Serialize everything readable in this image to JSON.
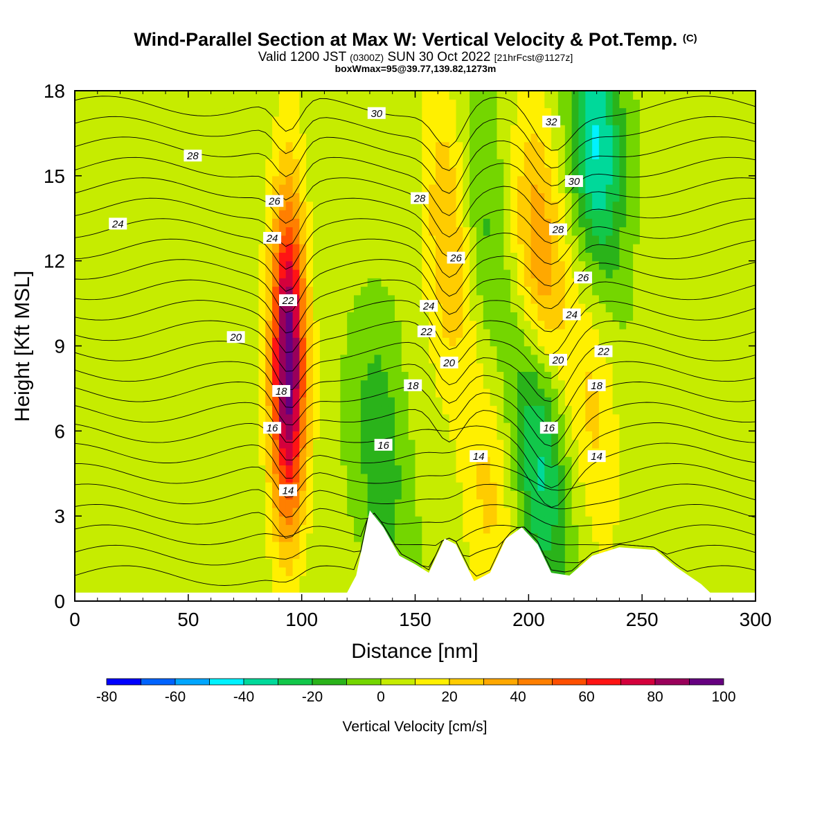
{
  "title": "Wind-Parallel Section at Max W: Vertical Velocity & Pot.Temp.",
  "title_mark": "(C)",
  "subtitle_main": "Valid 1200 JST",
  "subtitle_utc": "(0300Z)",
  "subtitle_date": "SUN 30 Oct 2022",
  "subtitle_fcst": "[21hrFcst@1127z]",
  "subtitle2": "boxWmax=95@39.77,139.82,1273m",
  "chart_data": {
    "type": "heatmap",
    "xlabel": "Distance [nm]",
    "ylabel": "Height [Kft MSL]",
    "xlim": [
      0,
      300
    ],
    "ylim": [
      0,
      18
    ],
    "xticks": [
      0,
      50,
      100,
      150,
      200,
      250,
      300
    ],
    "yticks": [
      0,
      3,
      6,
      9,
      12,
      15,
      18
    ],
    "colorbar": {
      "title": "Vertical Velocity [cm/s]",
      "levels": [
        -80,
        -70,
        -60,
        -50,
        -40,
        -30,
        -20,
        -10,
        0,
        10,
        20,
        30,
        40,
        50,
        60,
        70,
        80,
        90,
        100
      ],
      "tick_labels": [
        "-80",
        "-60",
        "-40",
        "-20",
        "0",
        "20",
        "40",
        "60",
        "80",
        "100"
      ],
      "tick_values": [
        -80,
        -60,
        -40,
        -20,
        0,
        20,
        40,
        60,
        80,
        100
      ],
      "colors": [
        "#0000ff",
        "#0063ff",
        "#00a6ff",
        "#00f2ff",
        "#00d99a",
        "#12c74a",
        "#2ab31a",
        "#74d600",
        "#c6ec00",
        "#fff000",
        "#ffcc00",
        "#ffa800",
        "#ff7f00",
        "#ff4f00",
        "#ff1414",
        "#d4003c",
        "#99005a",
        "#660080"
      ]
    },
    "contour_labels": [
      {
        "text": "30",
        "x": 133,
        "y": 17.2
      },
      {
        "text": "28",
        "x": 52,
        "y": 15.7
      },
      {
        "text": "26",
        "x": 88,
        "y": 14.1
      },
      {
        "text": "24",
        "x": 19,
        "y": 13.3
      },
      {
        "text": "24",
        "x": 87,
        "y": 12.8
      },
      {
        "text": "22",
        "x": 94,
        "y": 10.6
      },
      {
        "text": "20",
        "x": 71,
        "y": 9.3
      },
      {
        "text": "18",
        "x": 91,
        "y": 7.4
      },
      {
        "text": "16",
        "x": 87,
        "y": 6.1
      },
      {
        "text": "14",
        "x": 94,
        "y": 3.9
      },
      {
        "text": "28",
        "x": 152,
        "y": 14.2
      },
      {
        "text": "26",
        "x": 168,
        "y": 12.1
      },
      {
        "text": "24",
        "x": 156,
        "y": 10.4
      },
      {
        "text": "22",
        "x": 155,
        "y": 9.5
      },
      {
        "text": "20",
        "x": 165,
        "y": 8.4
      },
      {
        "text": "18",
        "x": 149,
        "y": 7.6
      },
      {
        "text": "16",
        "x": 136,
        "y": 5.5
      },
      {
        "text": "14",
        "x": 178,
        "y": 5.1
      },
      {
        "text": "32",
        "x": 210,
        "y": 16.9
      },
      {
        "text": "30",
        "x": 220,
        "y": 14.8
      },
      {
        "text": "28",
        "x": 213,
        "y": 13.1
      },
      {
        "text": "26",
        "x": 224,
        "y": 11.4
      },
      {
        "text": "24",
        "x": 219,
        "y": 10.1
      },
      {
        "text": "20",
        "x": 213,
        "y": 8.5
      },
      {
        "text": "22",
        "x": 233,
        "y": 8.8
      },
      {
        "text": "18",
        "x": 230,
        "y": 7.6
      },
      {
        "text": "16",
        "x": 209,
        "y": 6.1
      },
      {
        "text": "14",
        "x": 230,
        "y": 5.1
      }
    ],
    "velocity_features": [
      {
        "x": 94,
        "y": 8.5,
        "w": 95,
        "kind": "updraft-core"
      },
      {
        "x": 165,
        "y": 13.0,
        "w": 30,
        "kind": "updraft"
      },
      {
        "x": 205,
        "y": 12.0,
        "w": 40,
        "kind": "updraft"
      },
      {
        "x": 182,
        "y": 4.5,
        "w": 20,
        "kind": "updraft"
      },
      {
        "x": 229,
        "y": 7.0,
        "w": 20,
        "kind": "updraft"
      },
      {
        "x": 205,
        "y": 5.5,
        "w": -40,
        "kind": "downdraft"
      },
      {
        "x": 230,
        "y": 16.0,
        "w": -45,
        "kind": "downdraft"
      },
      {
        "x": 135,
        "y": 5.0,
        "w": -20,
        "kind": "downdraft"
      },
      {
        "x": 180,
        "y": 13.0,
        "w": -20,
        "kind": "downdraft"
      }
    ],
    "terrain_heights": [
      {
        "x": 0,
        "y": 0.3
      },
      {
        "x": 120,
        "y": 0.3
      },
      {
        "x": 124,
        "y": 0.9
      },
      {
        "x": 130,
        "y": 3.2
      },
      {
        "x": 136,
        "y": 2.6
      },
      {
        "x": 143,
        "y": 1.6
      },
      {
        "x": 150,
        "y": 1.3
      },
      {
        "x": 156,
        "y": 1.0
      },
      {
        "x": 163,
        "y": 2.2
      },
      {
        "x": 168,
        "y": 2.0
      },
      {
        "x": 176,
        "y": 0.7
      },
      {
        "x": 183,
        "y": 1.0
      },
      {
        "x": 190,
        "y": 2.2
      },
      {
        "x": 197,
        "y": 2.6
      },
      {
        "x": 204,
        "y": 2.0
      },
      {
        "x": 210,
        "y": 1.0
      },
      {
        "x": 218,
        "y": 0.9
      },
      {
        "x": 228,
        "y": 1.6
      },
      {
        "x": 240,
        "y": 1.9
      },
      {
        "x": 256,
        "y": 1.8
      },
      {
        "x": 265,
        "y": 1.2
      },
      {
        "x": 276,
        "y": 0.6
      },
      {
        "x": 280,
        "y": 0.3
      },
      {
        "x": 300,
        "y": 0.3
      }
    ]
  }
}
